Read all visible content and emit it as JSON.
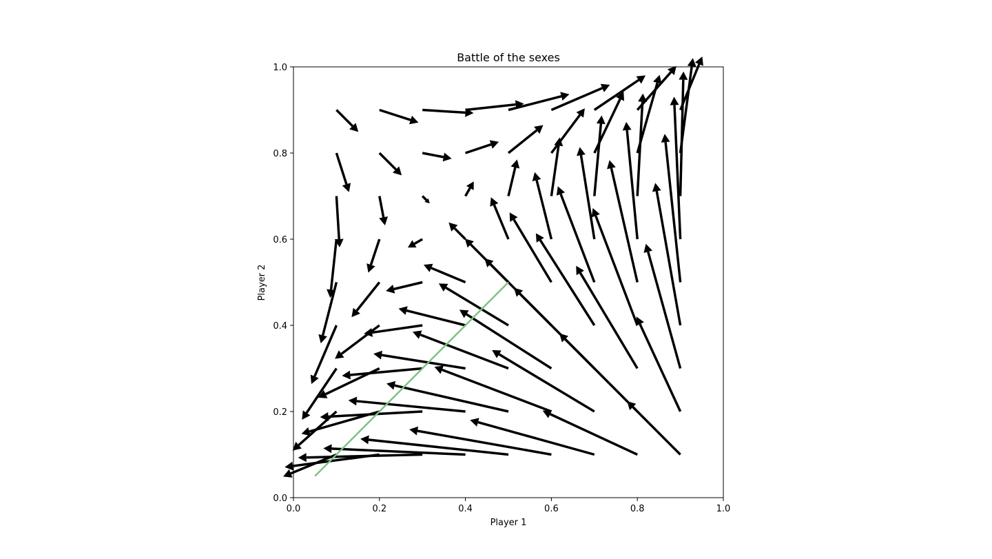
{
  "chart_data": {
    "type": "quiver",
    "title": "Battle of the sexes",
    "xlabel": "Player 1",
    "ylabel": "Player 2",
    "xlim": [
      0.0,
      1.0
    ],
    "ylim": [
      0.0,
      1.0
    ],
    "xticks": [
      "0.0",
      "0.2",
      "0.4",
      "0.6",
      "0.8",
      "1.0"
    ],
    "yticks": [
      "0.0",
      "0.2",
      "0.4",
      "0.6",
      "0.8",
      "1.0"
    ],
    "grid": false,
    "colors": {
      "arrow": "#000000",
      "trajectory": "#80c080"
    },
    "vector_field": {
      "x_values": [
        0.1,
        0.2,
        0.3,
        0.4,
        0.5,
        0.6,
        0.7,
        0.8,
        0.9
      ],
      "y_values": [
        0.1,
        0.2,
        0.3,
        0.4,
        0.5,
        0.6,
        0.7,
        0.8,
        0.9
      ],
      "vector": "u = x(1-x)(3y-2); v = y(1-y)(3x-1)"
    },
    "trajectory": {
      "x": [
        0.05,
        0.5
      ],
      "y": [
        0.05,
        0.5
      ]
    }
  }
}
